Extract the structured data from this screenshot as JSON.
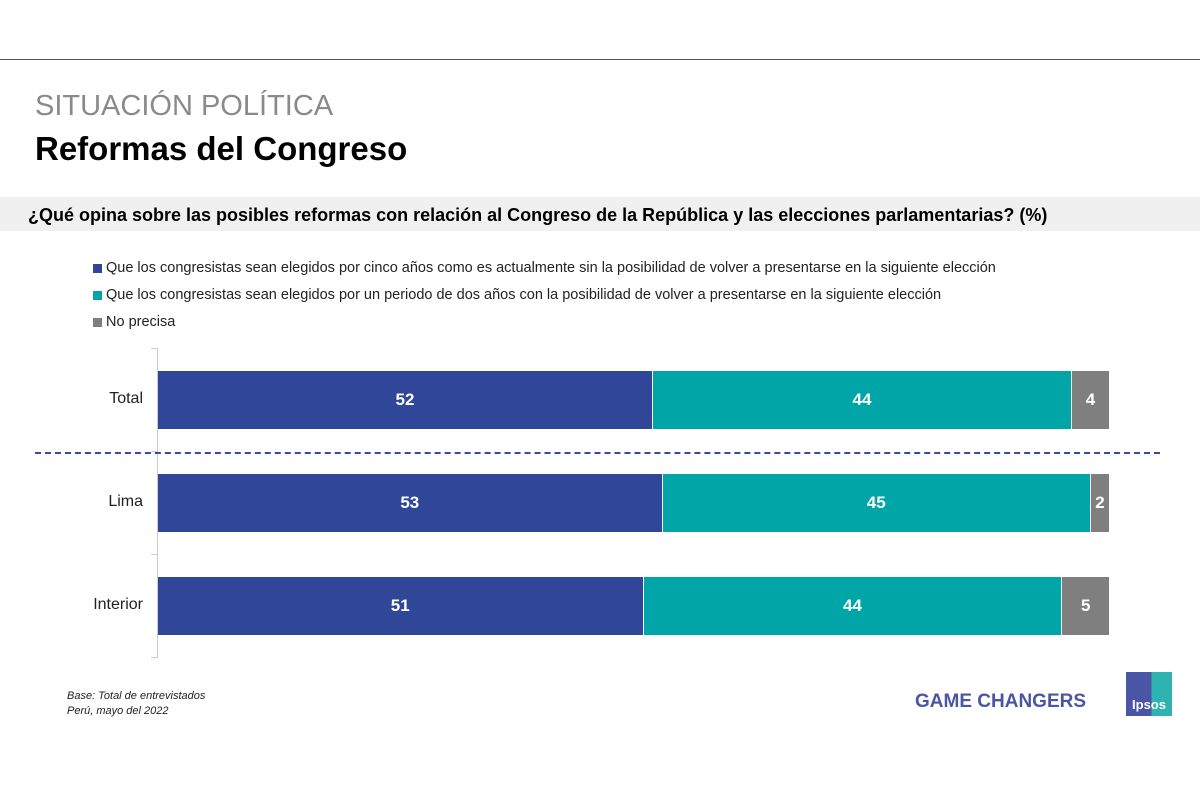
{
  "header": {
    "section": "SITUACIÓN POLÍTICA",
    "title": "Reformas del Congreso"
  },
  "chart_data": {
    "type": "bar",
    "orientation": "horizontal-stacked-100",
    "title": "¿Qué opina sobre las posibles reformas con relación al Congreso de la República y las elecciones parlamentarias? (%)",
    "categories": [
      "Total",
      "Lima",
      "Interior"
    ],
    "series": [
      {
        "name": "Que los congresistas sean elegidos por cinco años como es actualmente sin la posibilidad de volver a presentarse en la siguiente elección",
        "color": "#2f4699",
        "values": [
          52,
          53,
          51
        ]
      },
      {
        "name": "Que los congresistas sean elegidos por un periodo de dos años con la posibilidad de volver a presentarse en la siguiente elección",
        "color": "#00a5a8",
        "values": [
          44,
          45,
          44
        ]
      },
      {
        "name": "No precisa",
        "color": "#7f7f7f",
        "values": [
          4,
          2,
          5
        ]
      }
    ],
    "xlim": [
      0,
      100
    ],
    "legend": "top-left"
  },
  "footer": {
    "base": "Base: Total de entrevistados",
    "date": "Perú, mayo del 2022",
    "slogan": "GAME CHANGERS",
    "logo": "Ipsos"
  }
}
